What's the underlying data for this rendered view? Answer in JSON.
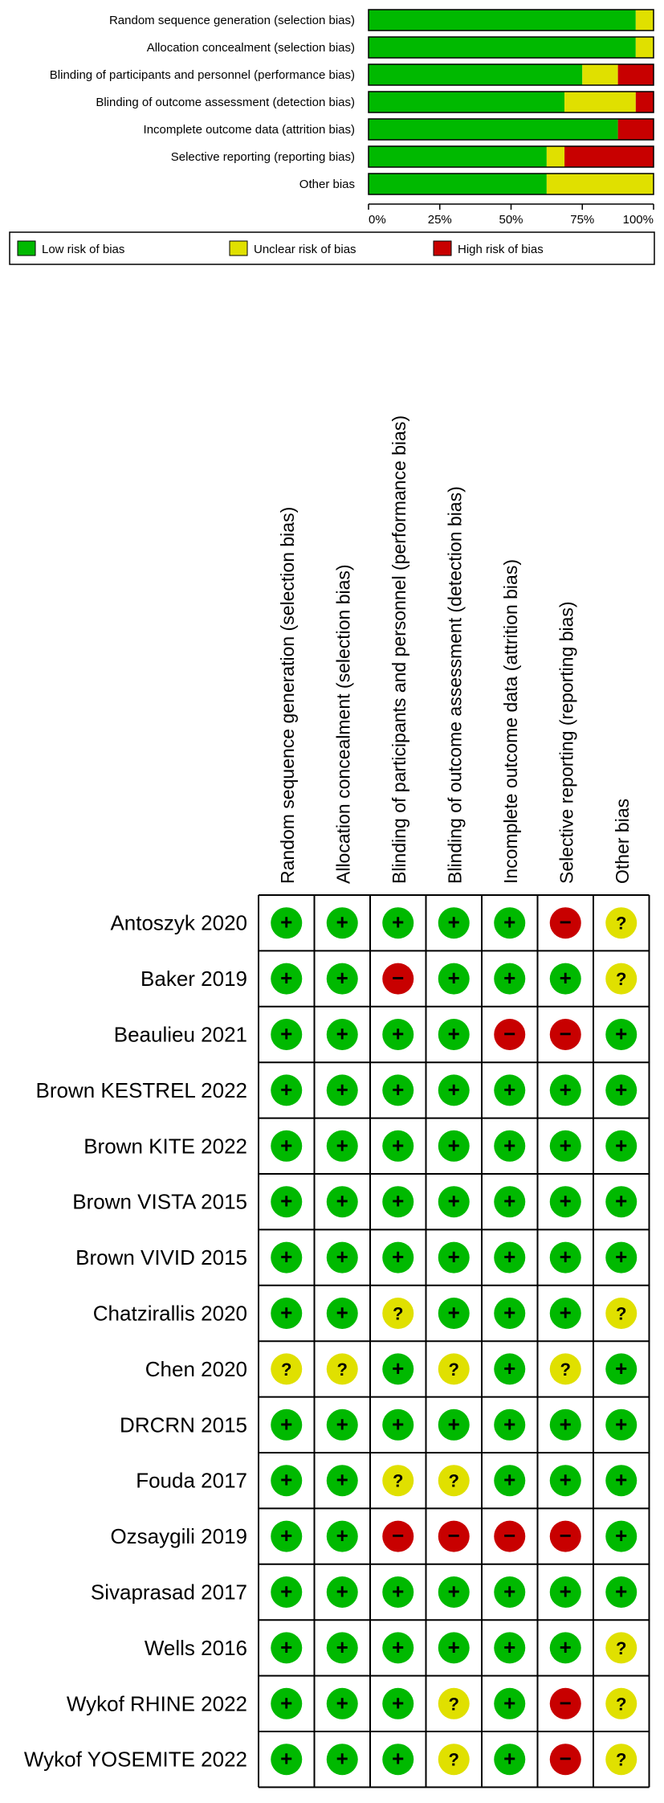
{
  "chart_data": [
    {
      "type": "bar",
      "stacked": true,
      "orientation": "horizontal",
      "categories": [
        "Random sequence generation (selection bias)",
        "Allocation concealment (selection bias)",
        "Blinding of participants and personnel (performance bias)",
        "Blinding of outcome assessment (detection bias)",
        "Incomplete outcome data (attrition bias)",
        "Selective reporting (reporting bias)",
        "Other bias"
      ],
      "series": [
        {
          "name": "Low risk of bias",
          "color": "#00b900",
          "values": [
            93.75,
            93.75,
            75,
            68.75,
            87.5,
            62.5,
            62.5
          ]
        },
        {
          "name": "Unclear risk of bias",
          "color": "#e0e000",
          "values": [
            6.25,
            6.25,
            12.5,
            25,
            0,
            6.25,
            37.5
          ]
        },
        {
          "name": "High risk of bias",
          "color": "#c80000",
          "values": [
            0,
            0,
            12.5,
            6.25,
            12.5,
            31.25,
            0
          ]
        }
      ],
      "xticks": [
        "0%",
        "25%",
        "50%",
        "75%",
        "100%"
      ],
      "xlim": [
        0,
        100
      ],
      "legend_position": "bottom"
    },
    {
      "type": "table",
      "columns": [
        "Random sequence generation (selection bias)",
        "Allocation concealment (selection bias)",
        "Blinding of participants and personnel (performance bias)",
        "Blinding of outcome assessment (detection bias)",
        "Incomplete outcome data (attrition bias)",
        "Selective reporting (reporting bias)",
        "Other bias"
      ],
      "rows": [
        {
          "study": "Antoszyk 2020",
          "judgements": [
            "low",
            "low",
            "low",
            "low",
            "low",
            "high",
            "unclear"
          ]
        },
        {
          "study": "Baker 2019",
          "judgements": [
            "low",
            "low",
            "high",
            "low",
            "low",
            "low",
            "unclear"
          ]
        },
        {
          "study": "Beaulieu 2021",
          "judgements": [
            "low",
            "low",
            "low",
            "low",
            "high",
            "high",
            "low"
          ]
        },
        {
          "study": "Brown KESTREL 2022",
          "judgements": [
            "low",
            "low",
            "low",
            "low",
            "low",
            "low",
            "low"
          ]
        },
        {
          "study": "Brown KITE 2022",
          "judgements": [
            "low",
            "low",
            "low",
            "low",
            "low",
            "low",
            "low"
          ]
        },
        {
          "study": "Brown VISTA 2015",
          "judgements": [
            "low",
            "low",
            "low",
            "low",
            "low",
            "low",
            "low"
          ]
        },
        {
          "study": "Brown VIVID 2015",
          "judgements": [
            "low",
            "low",
            "low",
            "low",
            "low",
            "low",
            "low"
          ]
        },
        {
          "study": "Chatzirallis 2020",
          "judgements": [
            "low",
            "low",
            "unclear",
            "low",
            "low",
            "low",
            "unclear"
          ]
        },
        {
          "study": "Chen 2020",
          "judgements": [
            "unclear",
            "unclear",
            "low",
            "unclear",
            "low",
            "unclear",
            "low"
          ]
        },
        {
          "study": "DRCRN 2015",
          "judgements": [
            "low",
            "low",
            "low",
            "low",
            "low",
            "low",
            "low"
          ]
        },
        {
          "study": "Fouda 2017",
          "judgements": [
            "low",
            "low",
            "unclear",
            "unclear",
            "low",
            "low",
            "low"
          ]
        },
        {
          "study": "Ozsaygili 2019",
          "judgements": [
            "low",
            "low",
            "high",
            "high",
            "high",
            "high",
            "low"
          ]
        },
        {
          "study": "Sivaprasad 2017",
          "judgements": [
            "low",
            "low",
            "low",
            "low",
            "low",
            "low",
            "low"
          ]
        },
        {
          "study": "Wells 2016",
          "judgements": [
            "low",
            "low",
            "low",
            "low",
            "low",
            "low",
            "unclear"
          ]
        },
        {
          "study": "Wykof RHINE 2022",
          "judgements": [
            "low",
            "low",
            "low",
            "unclear",
            "low",
            "high",
            "unclear"
          ]
        },
        {
          "study": "Wykof YOSEMITE 2022",
          "judgements": [
            "low",
            "low",
            "low",
            "unclear",
            "low",
            "high",
            "unclear"
          ]
        }
      ],
      "symbols": {
        "low": "+",
        "unclear": "?",
        "high": "−"
      },
      "colors": {
        "low": "#00b900",
        "unclear": "#e0e000",
        "high": "#c80000"
      }
    }
  ]
}
